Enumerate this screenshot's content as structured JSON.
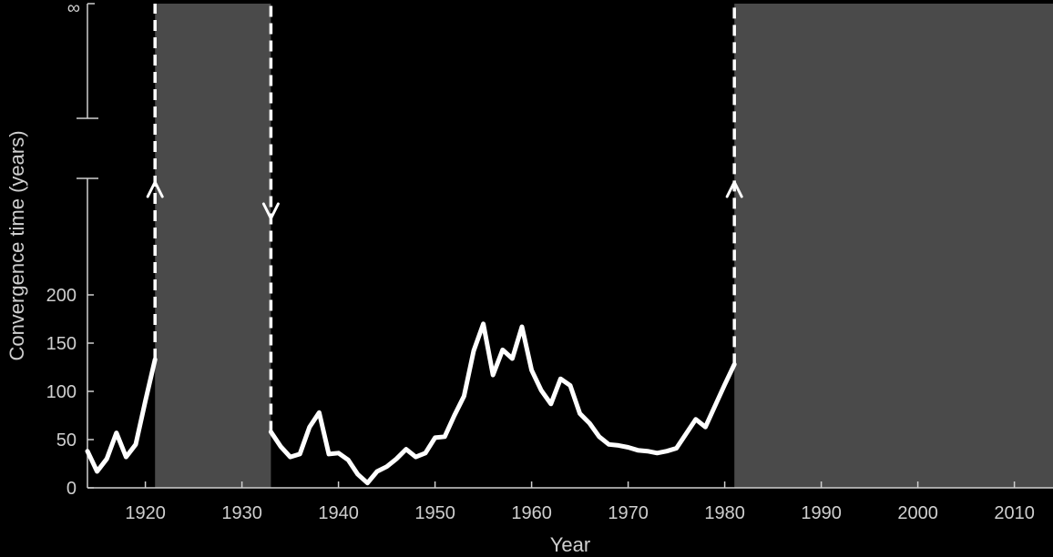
{
  "chart_data": {
    "type": "line",
    "title": "",
    "xlabel": "Year",
    "ylabel": "Convergence time (years)",
    "xlim": [
      1914,
      2014
    ],
    "ylim": [
      0,
      200
    ],
    "x_ticks": [
      1920,
      1930,
      1940,
      1950,
      1960,
      1970,
      1980,
      1990,
      2000,
      2010
    ],
    "y_ticks": [
      0,
      50,
      100,
      150,
      200
    ],
    "infinity_label": "∞",
    "grid": false,
    "legend": "none",
    "colors": {
      "background": "#000000",
      "divergent_region": "#4a4a4a",
      "line": "#ffffff",
      "axis": "#cfcfcf",
      "highlight": "#3b7fd9"
    },
    "divergent_regions": [
      {
        "start": 1921,
        "end": 1933
      },
      {
        "start": 1981,
        "end": 2014
      }
    ],
    "asymptotes": [
      {
        "x": 1921,
        "direction": "up"
      },
      {
        "x": 1933,
        "direction": "down"
      },
      {
        "x": 1981,
        "direction": "up"
      }
    ],
    "series": [
      {
        "x": [
          1914,
          1915,
          1916,
          1917,
          1918,
          1919,
          1920,
          1921
        ],
        "values": [
          38,
          17,
          30,
          57,
          32,
          45,
          90,
          133
        ]
      },
      {
        "x": [
          1933,
          1934,
          1935,
          1936,
          1937,
          1938,
          1939,
          1940,
          1941,
          1942,
          1943,
          1944,
          1945,
          1946,
          1947,
          1948,
          1949,
          1950,
          1951,
          1952,
          1953,
          1954,
          1955,
          1956,
          1957,
          1958,
          1959,
          1960,
          1961,
          1962,
          1963,
          1964,
          1965,
          1966,
          1967,
          1968,
          1969,
          1970,
          1971,
          1972,
          1973,
          1974,
          1975,
          1976,
          1977,
          1978,
          1979,
          1980,
          1981
        ],
        "values": [
          58,
          43,
          32,
          35,
          63,
          78,
          35,
          36,
          29,
          14,
          5,
          17,
          22,
          30,
          40,
          32,
          36,
          52,
          53,
          75,
          95,
          142,
          170,
          117,
          143,
          134,
          167,
          122,
          101,
          87,
          113,
          106,
          77,
          67,
          53,
          45,
          44,
          42,
          39,
          38,
          36,
          38,
          41,
          56,
          71,
          63,
          85,
          107,
          128
        ]
      }
    ]
  }
}
